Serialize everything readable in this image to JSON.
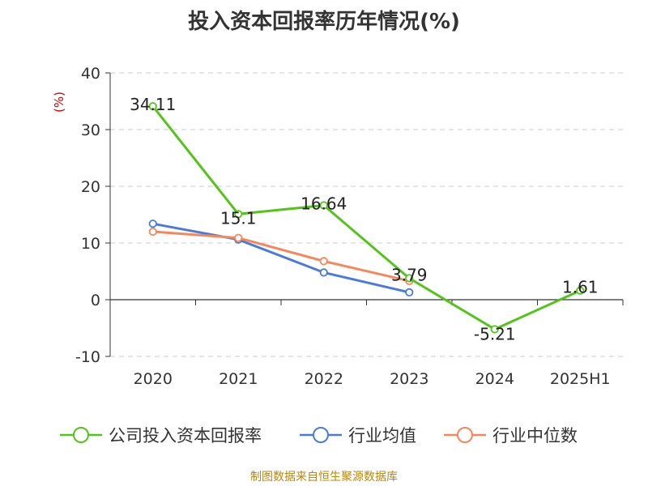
{
  "chart_data": {
    "type": "line",
    "title": "投入资本回报率历年情况(%)",
    "ylabel": "(%)",
    "categories": [
      "2020",
      "2021",
      "2022",
      "2023",
      "2024",
      "2025H1"
    ],
    "ylim": [
      -10,
      40
    ],
    "yticks": [
      40,
      30,
      20,
      10,
      0,
      -10
    ],
    "grid": true,
    "legend_position": "bottom",
    "series": [
      {
        "name": "公司投入资本回报率",
        "color": "#52c41a",
        "values": [
          34.11,
          15.1,
          16.64,
          3.79,
          -5.21,
          1.61
        ],
        "labels": [
          "34.11",
          "15.1",
          "16.64",
          "3.79",
          "-5.21",
          "1.61"
        ]
      },
      {
        "name": "行业均值",
        "color": "#4a7bd9",
        "values": [
          13.4,
          10.6,
          4.8,
          1.3,
          null,
          null
        ]
      },
      {
        "name": "行业中位数",
        "color": "#f5875a",
        "values": [
          12.0,
          10.9,
          6.8,
          3.3,
          null,
          null
        ]
      }
    ]
  },
  "source": "制图数据来自恒生聚源数据库"
}
